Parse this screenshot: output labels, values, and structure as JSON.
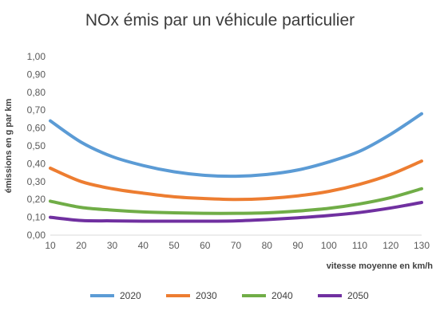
{
  "chart_data": {
    "type": "line",
    "title": "NOx émis par un véhicule particulier",
    "xlabel": "vitesse moyenne en km/h",
    "ylabel": "émissions en g par km",
    "x": [
      10,
      20,
      30,
      40,
      50,
      60,
      70,
      80,
      90,
      100,
      110,
      120,
      130
    ],
    "xlim": [
      10,
      130
    ],
    "ylim": [
      0,
      1
    ],
    "y_ticks": [
      "0,00",
      "0,10",
      "0,20",
      "0,30",
      "0,40",
      "0,50",
      "0,60",
      "0,70",
      "0,80",
      "0,90",
      "1,00"
    ],
    "x_ticks": [
      "10",
      "20",
      "30",
      "40",
      "50",
      "60",
      "70",
      "80",
      "90",
      "100",
      "110",
      "120",
      "130"
    ],
    "grid": false,
    "legend_position": "bottom",
    "series": [
      {
        "name": "2020",
        "color": "#5b9bd5",
        "values": [
          0.64,
          0.52,
          0.44,
          0.39,
          0.355,
          0.335,
          0.33,
          0.34,
          0.365,
          0.41,
          0.47,
          0.565,
          0.68
        ]
      },
      {
        "name": "2030",
        "color": "#ed7d31",
        "values": [
          0.375,
          0.3,
          0.26,
          0.235,
          0.215,
          0.205,
          0.2,
          0.205,
          0.22,
          0.245,
          0.285,
          0.34,
          0.415
        ]
      },
      {
        "name": "2040",
        "color": "#70ad47",
        "values": [
          0.19,
          0.155,
          0.14,
          0.13,
          0.125,
          0.122,
          0.122,
          0.125,
          0.135,
          0.15,
          0.175,
          0.21,
          0.26
        ]
      },
      {
        "name": "2050",
        "color": "#7030a0",
        "values": [
          0.1,
          0.082,
          0.08,
          0.078,
          0.078,
          0.078,
          0.08,
          0.087,
          0.097,
          0.11,
          0.127,
          0.152,
          0.183
        ]
      }
    ]
  }
}
